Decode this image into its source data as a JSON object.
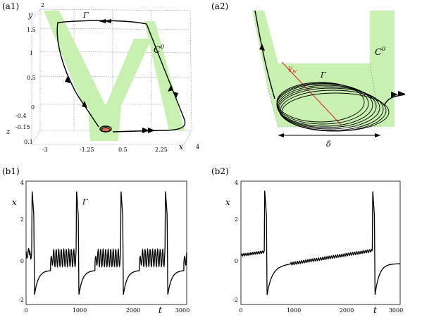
{
  "figure": {
    "a1": {
      "label": "(a1)",
      "orbit_label": "Γ",
      "manifold_label": "C",
      "manifold_sup": "0",
      "axis_x": "x",
      "axis_y": "y",
      "axis_z": "z",
      "x_ticks": [
        "-3",
        "-1.25",
        "0.5",
        "2.25",
        "4"
      ],
      "y_ticks": [
        "2",
        "1.5",
        "1",
        "0.5",
        "0"
      ],
      "z_ticks": [
        "-0.4",
        "-0.15",
        "0.1"
      ]
    },
    "a2": {
      "label": "(a2)",
      "orbit_label": "Γ",
      "manifold_label": "C",
      "manifold_sup": "0",
      "gamma_label": "γ",
      "gamma_sub": "w",
      "delta_label": "δ"
    },
    "b1": {
      "label": "(b1)",
      "ylabel": "x",
      "xlabel": "t",
      "orbit_label": "Γ",
      "y_ticks": [
        "4",
        "2",
        "0",
        "-2"
      ],
      "x_ticks": [
        "0",
        "1000",
        "2000",
        "3000"
      ]
    },
    "b2": {
      "label": "(b2)",
      "ylabel": "x",
      "xlabel": "t",
      "y_ticks": [
        "4",
        "2",
        "0",
        "-2"
      ],
      "x_ticks": [
        "0",
        "1000",
        "2000",
        "3000"
      ]
    }
  },
  "chart_data": [
    {
      "type": "line",
      "panel": "b1",
      "xlim": [
        0,
        3000
      ],
      "ylim": [
        -2.5,
        4
      ],
      "period": 830,
      "spike_peak": 3.5,
      "spike_min": -2,
      "spike_times": [
        105,
        935,
        1765,
        2595
      ],
      "small_oscillations_per_period": 10
    },
    {
      "type": "line",
      "panel": "b2",
      "xlim": [
        0,
        3000
      ],
      "ylim": [
        -2.5,
        4
      ],
      "spike_peak": 3.5,
      "spike_min": -2,
      "spike_times": [
        440,
        2475
      ]
    }
  ],
  "colors": {
    "manifold": "#c8f0b0",
    "gamma_w": "#e0201a",
    "curve": "#000000"
  }
}
